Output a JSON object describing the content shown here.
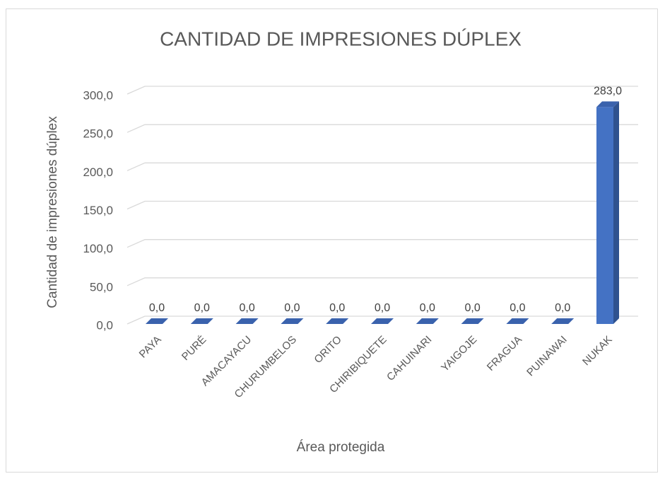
{
  "chart_data": {
    "type": "bar3d",
    "title": "CANTIDAD DE IMPRESIONES DÚPLEX",
    "y_label": "Cantidad de impresiones dúplex",
    "x_label": "Área protegida",
    "categories": [
      "PAYA",
      "PURÉ",
      "AMACAYACU",
      "CHURUMBELOS",
      "ORITO",
      "CHIRIBIQUETE",
      "CAHUINARI",
      "YAIGOJE",
      "FRAGUA",
      "PUINAWAI",
      "NUKAK"
    ],
    "values": [
      0,
      0,
      0,
      0,
      0,
      0,
      0,
      0,
      0,
      0,
      283
    ],
    "value_labels": [
      "0,0",
      "0,0",
      "0,0",
      "0,0",
      "0,0",
      "0,0",
      "0,0",
      "0,0",
      "0,0",
      "0,0",
      "283,0"
    ],
    "color": "#4472c4",
    "ylim": [
      0,
      300
    ],
    "yticks": [
      {
        "value": 0,
        "label": "0,0"
      },
      {
        "value": 50,
        "label": "50,0"
      },
      {
        "value": 100,
        "label": "100,0"
      },
      {
        "value": 150,
        "label": "150,0"
      },
      {
        "value": 200,
        "label": "200,0"
      },
      {
        "value": 250,
        "label": "250,0"
      },
      {
        "value": 300,
        "label": "300,0"
      }
    ],
    "grid": true
  }
}
